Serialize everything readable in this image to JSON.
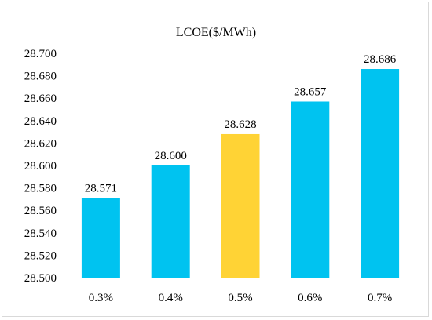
{
  "chart_data": {
    "type": "bar",
    "title": "LCOE($/MWh)",
    "xlabel": "",
    "ylabel": "",
    "categories": [
      "0.3%",
      "0.4%",
      "0.5%",
      "0.6%",
      "0.7%"
    ],
    "values": [
      28.571,
      28.6,
      28.628,
      28.657,
      28.686
    ],
    "data_labels": [
      "28.571",
      "28.600",
      "28.628",
      "28.657",
      "28.686"
    ],
    "ylim": [
      28.5,
      28.7
    ],
    "yticks": [
      "28.500",
      "28.520",
      "28.540",
      "28.560",
      "28.580",
      "28.600",
      "28.620",
      "28.640",
      "28.660",
      "28.680",
      "28.700"
    ],
    "grid": false,
    "legend": "none",
    "colors": {
      "default_bar": "#00c3f0",
      "highlight_bar": "#ffd335",
      "highlight_category": "0.5%",
      "axis": "#d9d9d9"
    }
  }
}
